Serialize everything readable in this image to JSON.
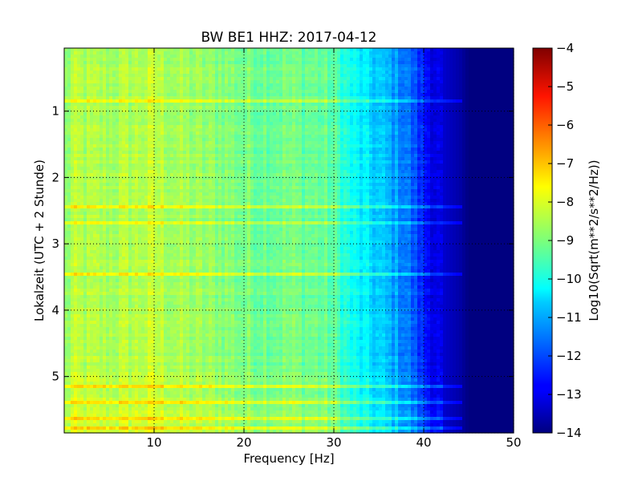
{
  "chart_data": {
    "type": "heatmap",
    "title": "BW BE1 HHZ: 2017-04-12",
    "xlabel": "Frequency [Hz]",
    "ylabel": "Lokalzeit (UTC + 2 Stunde)",
    "xlim": [
      0,
      50
    ],
    "ylim": [
      0.05,
      5.85
    ],
    "y_inverted": true,
    "grid": true,
    "x_ticks": [
      10,
      20,
      30,
      40,
      50
    ],
    "y_ticks": [
      1,
      2,
      3,
      4,
      5
    ],
    "colormap": "jet",
    "colorbar": {
      "label": "Log10(Sqrt(m**2/s**2/Hz))",
      "range": [
        -14,
        -4
      ],
      "ticks": [
        -14,
        -13,
        -12,
        -11,
        -10,
        -9,
        -8,
        -7,
        -6,
        -5,
        -4
      ]
    },
    "frequency_profile": {
      "frequency_hz": [
        0,
        1,
        3,
        5,
        8,
        10,
        12,
        15,
        18,
        20,
        22,
        25,
        28,
        30,
        32,
        34,
        36,
        38,
        40,
        42,
        44,
        45,
        46,
        50
      ],
      "level": [
        -9.0,
        -8.5,
        -8.6,
        -8.6,
        -8.5,
        -8.4,
        -8.6,
        -8.8,
        -8.9,
        -9.1,
        -9.1,
        -9.1,
        -9.2,
        -9.4,
        -10.2,
        -10.6,
        -11.0,
        -11.5,
        -12.5,
        -13.2,
        -13.6,
        -14.0,
        -14.0,
        -14.0
      ]
    },
    "bright_horizontal_bands_hours": [
      0.85,
      2.45,
      2.7,
      3.45,
      5.15,
      5.4,
      5.65,
      5.78
    ]
  }
}
